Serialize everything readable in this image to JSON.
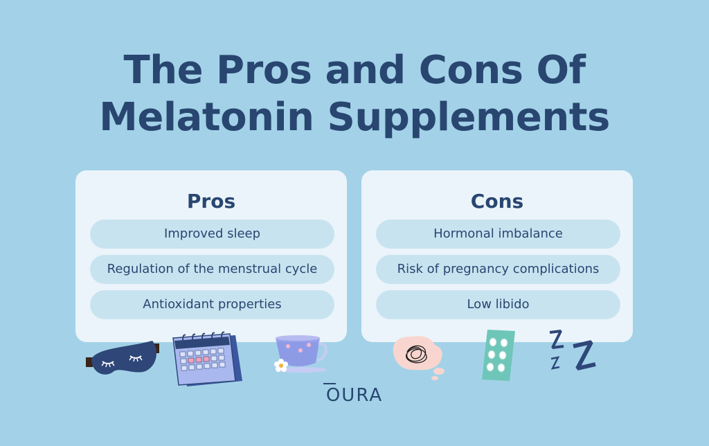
{
  "title": {
    "line1": "The Pros and Cons Of",
    "line2": "Melatonin Supplements"
  },
  "pros": {
    "heading": "Pros",
    "items": [
      "Improved sleep",
      "Regulation of the menstrual cycle",
      "Antioxidant properties"
    ]
  },
  "cons": {
    "heading": "Cons",
    "items": [
      "Hormonal imbalance",
      "Risk of pregnancy complications",
      "Low libido"
    ]
  },
  "brand": {
    "logo_text": "OURA"
  },
  "illustrations": [
    "sleep-mask-icon",
    "calendar-icon",
    "herbal-tea-icon",
    "tangled-thought-icon",
    "pill-blister-icon",
    "zzz-icon"
  ],
  "colors": {
    "background": "#a3d2e8",
    "card": "#ebf4fa",
    "pill": "#c8e3f0",
    "text": "#284670"
  }
}
